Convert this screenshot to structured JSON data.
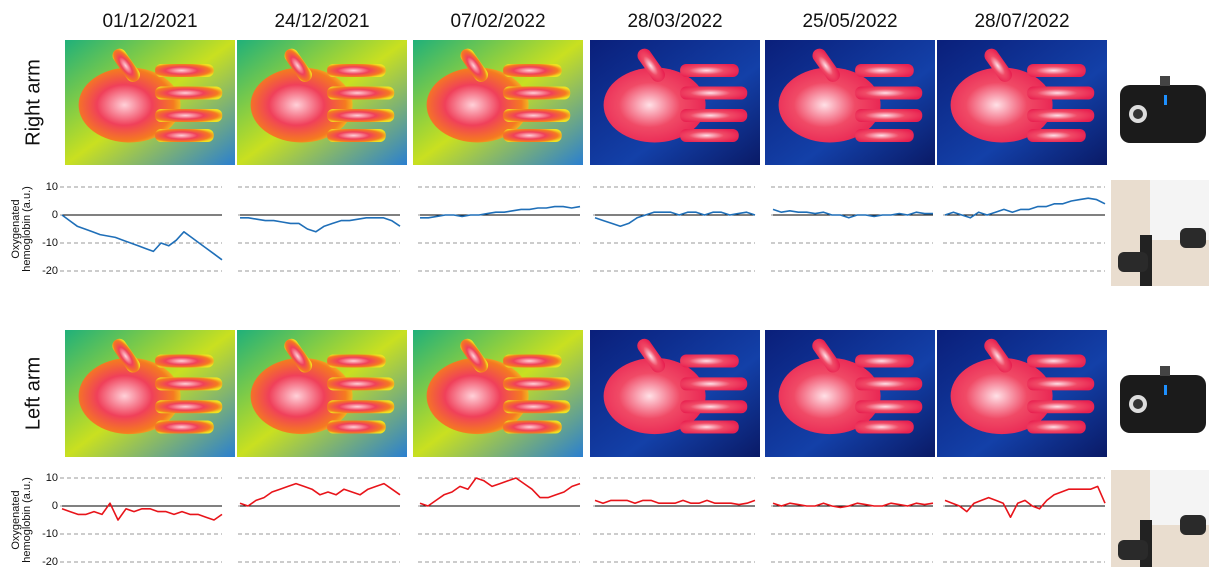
{
  "dates": [
    "01/12/2021",
    "24/12/2021",
    "07/02/2022",
    "28/03/2022",
    "25/05/2022",
    "28/07/2022"
  ],
  "rows": [
    "Right arm",
    "Left arm"
  ],
  "chart_data": [
    {
      "type": "line",
      "ylabel": [
        "Oxygenated",
        "hemoglobin (a.u.)"
      ],
      "color": "#1f6fb8",
      "ylim": [
        -20,
        10
      ],
      "yticks": [
        -20,
        -10,
        0,
        10
      ],
      "tick_labels": true,
      "grid": true,
      "values": [
        0,
        -2,
        -4,
        -5,
        -6,
        -7,
        -7.5,
        -8,
        -9,
        -10,
        -11,
        -12,
        -13,
        -10,
        -11,
        -9,
        -6,
        -8,
        -10,
        -12,
        -14,
        -16
      ]
    },
    {
      "type": "line",
      "color": "#1f6fb8",
      "ylim": [
        -20,
        10
      ],
      "yticks": [
        -20,
        -10,
        0,
        10
      ],
      "tick_labels": false,
      "grid": true,
      "values": [
        -1,
        -1,
        -1.5,
        -2,
        -2,
        -2.5,
        -3,
        -3,
        -5,
        -6,
        -4,
        -3,
        -2,
        -2,
        -1.5,
        -1,
        -1,
        -1,
        -2,
        -4
      ]
    },
    {
      "type": "line",
      "color": "#1f6fb8",
      "ylim": [
        -20,
        10
      ],
      "yticks": [
        -20,
        -10,
        0,
        10
      ],
      "tick_labels": false,
      "grid": true,
      "values": [
        -1,
        -1,
        -0.5,
        0,
        0,
        -0.5,
        0,
        0,
        0.5,
        1,
        1,
        1.5,
        2,
        2,
        2.5,
        2.5,
        3,
        3,
        2.5,
        3
      ]
    },
    {
      "type": "line",
      "color": "#1f6fb8",
      "ylim": [
        -20,
        10
      ],
      "yticks": [
        -20,
        -10,
        0,
        10
      ],
      "tick_labels": false,
      "grid": true,
      "values": [
        -1,
        -2,
        -3,
        -4,
        -3,
        -1,
        0,
        1,
        1,
        1,
        0,
        1,
        1,
        0,
        1,
        1,
        0,
        0.5,
        1,
        0
      ]
    },
    {
      "type": "line",
      "color": "#1f6fb8",
      "ylim": [
        -20,
        10
      ],
      "yticks": [
        -20,
        -10,
        0,
        10
      ],
      "tick_labels": false,
      "grid": true,
      "values": [
        2,
        1,
        1.5,
        1,
        1,
        0.5,
        1,
        0,
        0,
        -1,
        0,
        0,
        -0.5,
        0,
        0,
        0.5,
        0,
        1,
        0.5,
        0.5
      ]
    },
    {
      "type": "line",
      "color": "#1f6fb8",
      "ylim": [
        -20,
        10
      ],
      "yticks": [
        -20,
        -10,
        0,
        10
      ],
      "tick_labels": false,
      "grid": true,
      "values": [
        0,
        1,
        0,
        -1,
        1,
        0,
        1,
        2,
        1,
        2,
        2,
        3,
        3,
        4,
        4,
        5,
        5.5,
        6,
        5.5,
        4
      ]
    },
    {
      "type": "line",
      "ylabel": [
        "Oxygenated",
        "hemoglobin (a.u.)"
      ],
      "color": "#e8141a",
      "ylim": [
        -20,
        10
      ],
      "yticks": [
        -20,
        -10,
        0,
        10
      ],
      "tick_labels": true,
      "grid": true,
      "values": [
        -1,
        -2,
        -3,
        -3,
        -2,
        -3,
        1,
        -5,
        -1,
        -2,
        -1,
        -1,
        -2,
        -2,
        -3,
        -2,
        -3,
        -3,
        -4,
        -5,
        -3
      ]
    },
    {
      "type": "line",
      "color": "#e8141a",
      "ylim": [
        -20,
        10
      ],
      "yticks": [
        -20,
        -10,
        0,
        10
      ],
      "tick_labels": false,
      "grid": true,
      "values": [
        1,
        0,
        2,
        3,
        5,
        6,
        7,
        8,
        7,
        6,
        4,
        5,
        4,
        6,
        5,
        4,
        6,
        7,
        8,
        6,
        4
      ]
    },
    {
      "type": "line",
      "color": "#e8141a",
      "ylim": [
        -20,
        10
      ],
      "yticks": [
        -20,
        -10,
        0,
        10
      ],
      "tick_labels": false,
      "grid": true,
      "values": [
        1,
        0,
        2,
        4,
        5,
        7,
        6,
        10,
        9,
        7,
        8,
        9,
        10,
        8,
        6,
        3,
        3,
        4,
        5,
        7,
        8
      ]
    },
    {
      "type": "line",
      "color": "#e8141a",
      "ylim": [
        -20,
        10
      ],
      "yticks": [
        -20,
        -10,
        0,
        10
      ],
      "tick_labels": false,
      "grid": true,
      "values": [
        2,
        1,
        2,
        2,
        2,
        1,
        2,
        2,
        1,
        1,
        1,
        2,
        1,
        1,
        2,
        1,
        1,
        1,
        0.5,
        1,
        2
      ]
    },
    {
      "type": "line",
      "color": "#e8141a",
      "ylim": [
        -20,
        10
      ],
      "yticks": [
        -20,
        -10,
        0,
        10
      ],
      "tick_labels": false,
      "grid": true,
      "values": [
        1,
        0,
        1,
        0.5,
        0,
        0,
        1,
        0,
        -0.5,
        0,
        1,
        0.5,
        0,
        0,
        1,
        0.5,
        0,
        1,
        0.5,
        1
      ]
    },
    {
      "type": "line",
      "color": "#e8141a",
      "ylim": [
        -20,
        10
      ],
      "yticks": [
        -20,
        -10,
        0,
        10
      ],
      "tick_labels": false,
      "grid": true,
      "values": [
        2,
        1,
        0,
        -2,
        1,
        2,
        3,
        2,
        1,
        -4,
        1,
        2,
        0,
        -1,
        2,
        4,
        5,
        6,
        6,
        6,
        6,
        7,
        1
      ]
    }
  ]
}
